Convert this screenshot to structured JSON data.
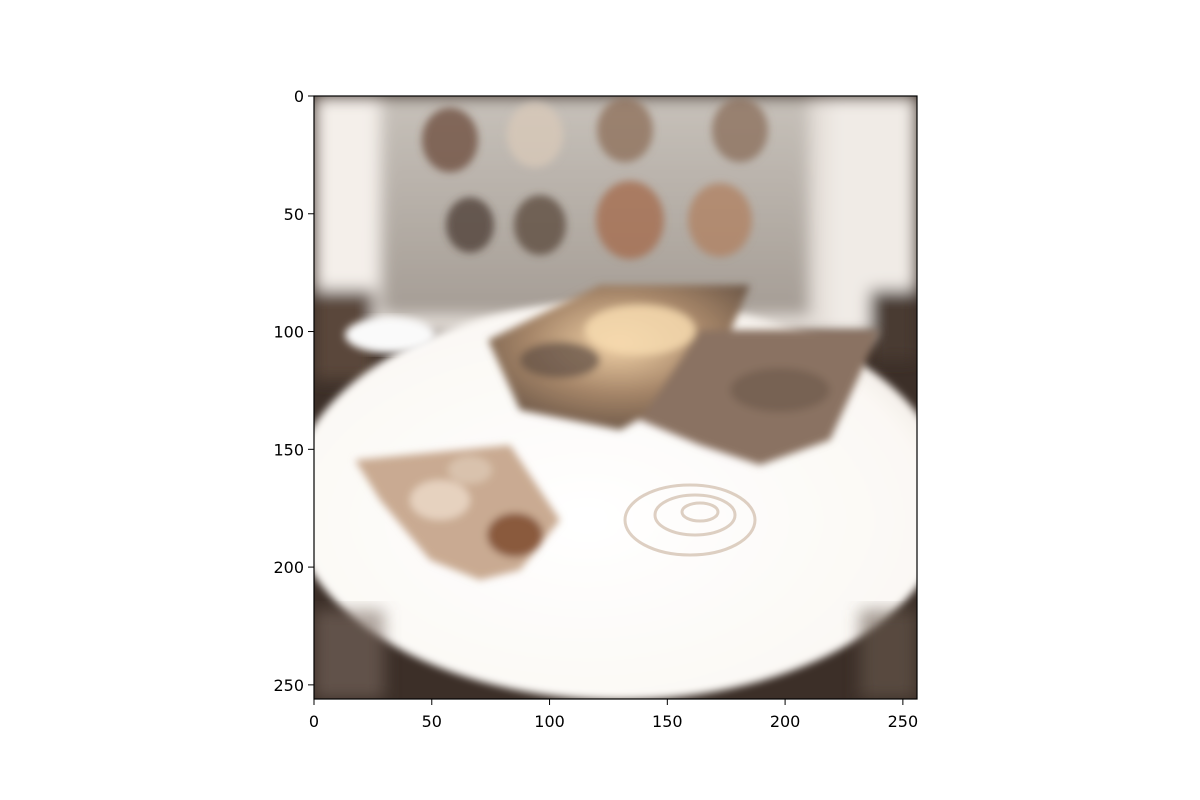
{
  "chart_data": {
    "type": "image",
    "title": "",
    "xlabel": "",
    "ylabel": "",
    "xlim": [
      0,
      256
    ],
    "ylim": [
      256,
      0
    ],
    "x_ticks": [
      0,
      50,
      100,
      150,
      200,
      250
    ],
    "y_ticks": [
      0,
      50,
      100,
      150,
      200,
      250
    ],
    "x_tick_labels": [
      "0",
      "50",
      "100",
      "150",
      "200",
      "250"
    ],
    "y_tick_labels": [
      "0",
      "50",
      "100",
      "150",
      "200",
      "250"
    ],
    "grid": false,
    "legend": "none"
  },
  "palette": {
    "plate": "#fdfbf8",
    "shirt": "#b9b3ac",
    "toast_dark": "#6b5a4c",
    "toast_light": "#c9a57f",
    "fruit": "#b7876a",
    "background_dark": "#3c2f28",
    "faces": [
      "#6b4a3a",
      "#d9c9b8",
      "#8c6d57",
      "#8a6e5a",
      "#4a3a30",
      "#5a4538",
      "#a4694a",
      "#b08060"
    ]
  },
  "image_content": {
    "icons": [
      "plate-illustration",
      "toast-illustration",
      "fruit-illustration",
      "shirt-illustration"
    ]
  }
}
